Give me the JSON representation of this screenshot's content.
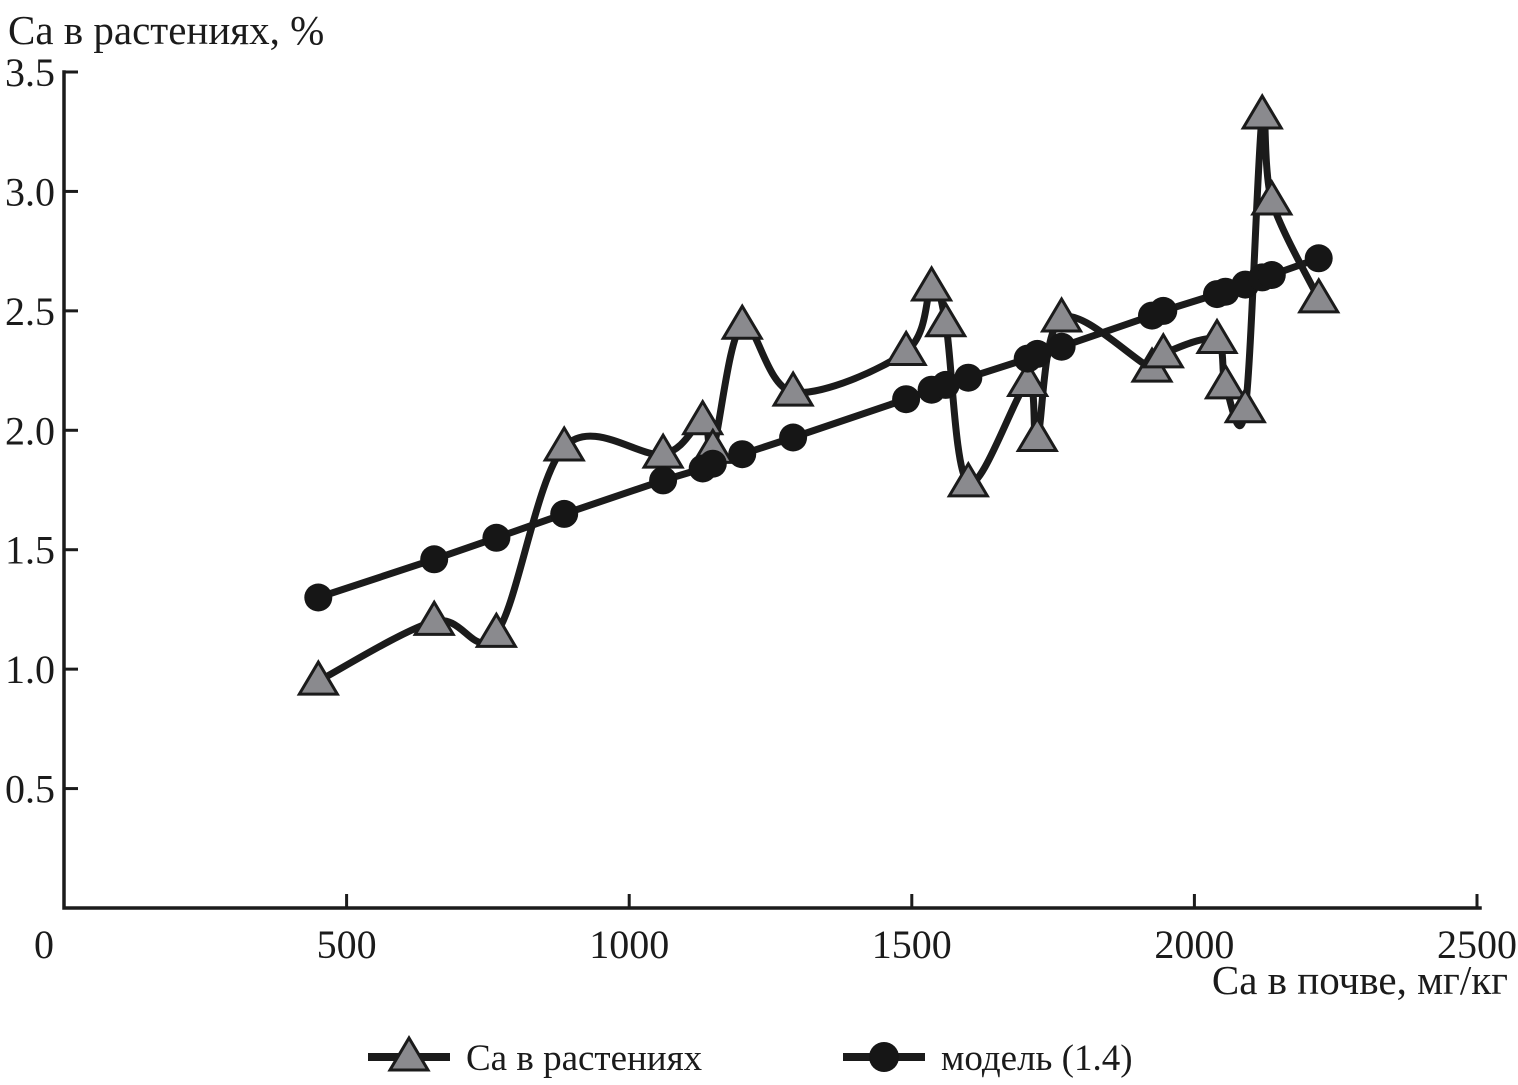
{
  "figure": {
    "y_axis_title": "Са в растениях, %",
    "x_axis_title": "Са в почве, мг/кг"
  },
  "legend": [
    {
      "label": "Са в растениях",
      "marker": "triangle-icon"
    },
    {
      "label": "модель (1.4)",
      "marker": "circle-icon"
    }
  ],
  "colors": {
    "line": "#1b1b1b",
    "triangle_fill": "#8a8a8e",
    "circle_fill": "#161616",
    "background": "#ffffff"
  },
  "chart_data": {
    "type": "line",
    "title": "",
    "xlabel": "Са в почве, мг/кг",
    "ylabel": "Са в растениях, %",
    "x_range": [
      0,
      2500
    ],
    "y_range": [
      0,
      3.5
    ],
    "x_ticks": [
      0,
      500,
      1000,
      1500,
      2000,
      2500
    ],
    "y_ticks": [
      0.5,
      1.0,
      1.5,
      2.0,
      2.5,
      3.0,
      3.5
    ],
    "grid": false,
    "legend_position": "bottom",
    "x": [
      450,
      655,
      765,
      885,
      1060,
      1130,
      1148,
      1200,
      1290,
      1490,
      1535,
      1560,
      1600,
      1705,
      1722,
      1765,
      1925,
      1945,
      2040,
      2055,
      2090,
      2120,
      2137,
      2220
    ],
    "series": [
      {
        "name": "Са в растениях",
        "marker": "triangle",
        "smooth": true,
        "values": [
          0.95,
          1.2,
          1.15,
          1.93,
          1.9,
          2.04,
          1.92,
          2.44,
          2.16,
          2.33,
          2.6,
          2.45,
          1.78,
          2.2,
          1.97,
          2.47,
          2.26,
          2.32,
          2.38,
          2.19,
          2.09,
          3.32,
          2.96,
          2.55
        ]
      },
      {
        "name": "модель (1.4)",
        "marker": "circle",
        "smooth": false,
        "values": [
          1.3,
          1.46,
          1.55,
          1.65,
          1.79,
          1.84,
          1.86,
          1.9,
          1.97,
          2.13,
          2.17,
          2.19,
          2.22,
          2.3,
          2.32,
          2.35,
          2.48,
          2.5,
          2.57,
          2.58,
          2.61,
          2.64,
          2.65,
          2.72
        ]
      }
    ]
  }
}
